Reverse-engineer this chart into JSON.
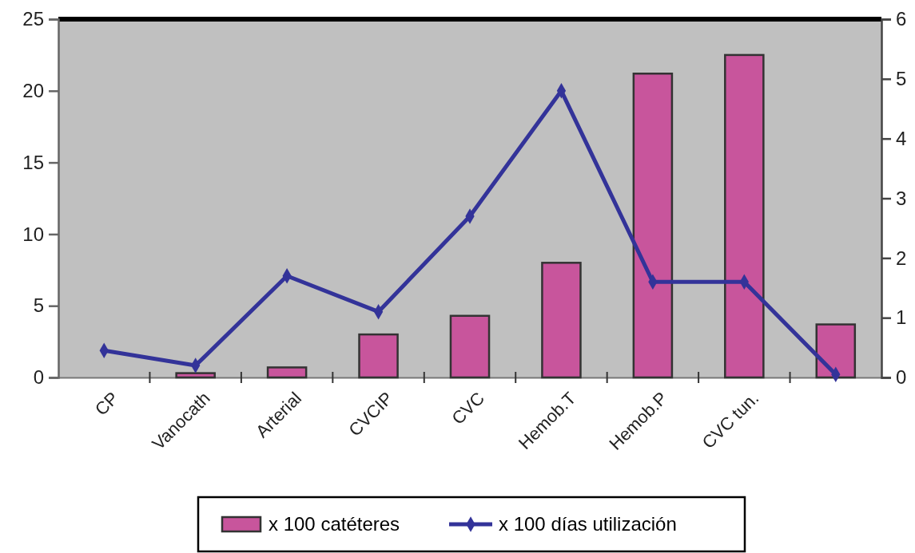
{
  "chart_data": {
    "type": "bar",
    "categories": [
      "CP",
      "Vanocath",
      "Arterial",
      "CVCIP",
      "CVC",
      "Hemob.T",
      "Hemob.P",
      "CVC tun.",
      null
    ],
    "series": [
      {
        "name": "x 100 catéteres",
        "type": "bar",
        "color": "#c8559c",
        "values": [
          0,
          0.3,
          0.7,
          3,
          4.3,
          8,
          21.2,
          22.5,
          3.7
        ]
      },
      {
        "name": "x 100 días utilización",
        "type": "line",
        "axis": "y2",
        "color": "#333399",
        "values": [
          0.45,
          0.2,
          1.7,
          1.1,
          2.7,
          4.8,
          1.6,
          1.6,
          0.05
        ]
      }
    ],
    "ylim": [
      0,
      25
    ],
    "yticks": [
      0,
      5,
      10,
      15,
      20,
      25
    ],
    "y2lim": [
      0,
      6
    ],
    "y2ticks": [
      0,
      1,
      2,
      3,
      4,
      5,
      6
    ],
    "marker": "diamond",
    "legend": "bottom",
    "grid": false
  }
}
